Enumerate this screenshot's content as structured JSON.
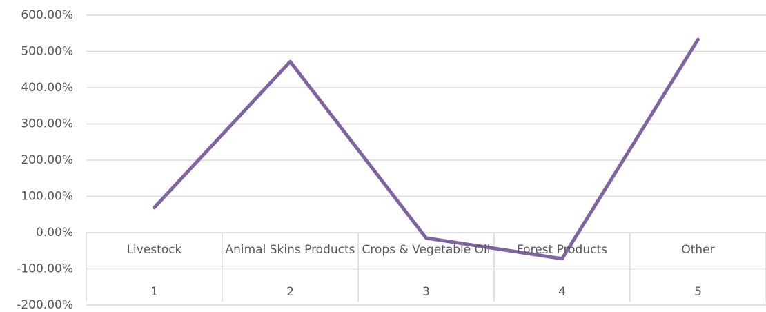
{
  "chart_data": {
    "type": "line",
    "categories": [
      "Livestock",
      "Animal Skins Products",
      "Crops & Vegetable Oil",
      "Forest Products",
      "Other"
    ],
    "category_numbers": [
      1,
      2,
      3,
      4,
      5
    ],
    "series": [
      {
        "color": "#8064a2",
        "values": [
          69,
          472,
          -15,
          -72,
          533
        ]
      }
    ],
    "ylim": [
      -200,
      600
    ],
    "yticks": [
      {
        "value": -200,
        "label": "-200.00%"
      },
      {
        "value": -100,
        "label": "-100.00%"
      },
      {
        "value": 0,
        "label": "0.00%"
      },
      {
        "value": 100,
        "label": "100.00%"
      },
      {
        "value": 200,
        "label": "200.00%"
      },
      {
        "value": 300,
        "label": "300.00%"
      },
      {
        "value": 400,
        "label": "400.00%"
      },
      {
        "value": 500,
        "label": "500.00%"
      },
      {
        "value": 600,
        "label": "600.00%"
      }
    ],
    "grid": true
  }
}
